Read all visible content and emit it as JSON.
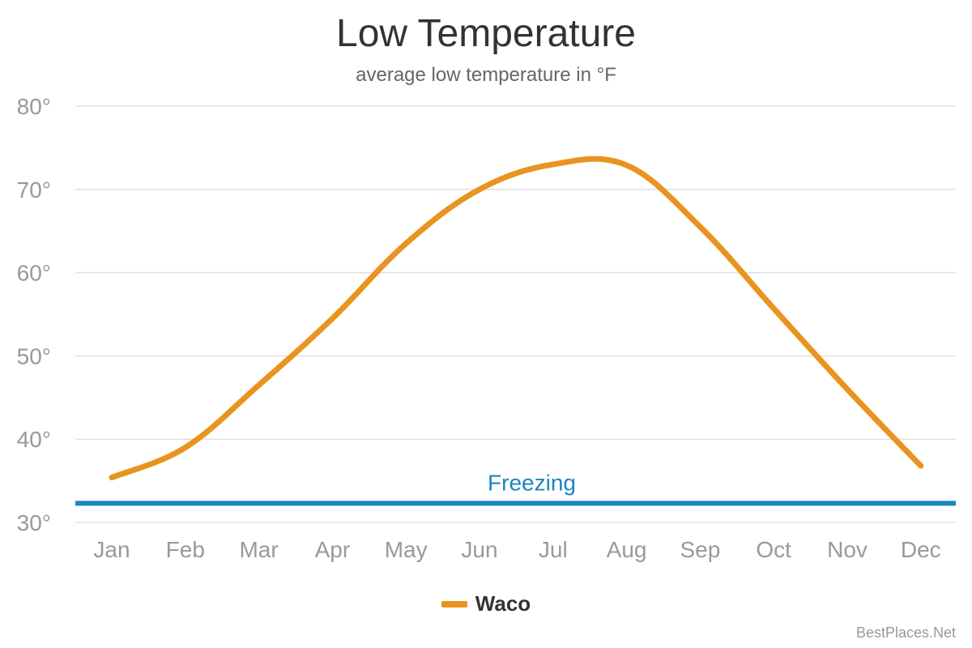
{
  "chart_data": {
    "type": "line",
    "title": "Low Temperature",
    "subtitle": "average low temperature in °F",
    "categories": [
      "Jan",
      "Feb",
      "Mar",
      "Apr",
      "May",
      "Jun",
      "Jul",
      "Aug",
      "Sep",
      "Oct",
      "Nov",
      "Dec"
    ],
    "series": [
      {
        "name": "Waco",
        "color": "#e8941e",
        "values": [
          35.4,
          39.0,
          46.5,
          54.5,
          63.5,
          70.0,
          73.0,
          72.9,
          65.5,
          55.7,
          46.0,
          36.8
        ]
      }
    ],
    "ylim": [
      30,
      80
    ],
    "yticks": [
      30,
      40,
      50,
      60,
      70,
      80
    ],
    "ytick_labels": [
      "30°",
      "40°",
      "50°",
      "60°",
      "70°",
      "80°"
    ],
    "grid": true,
    "legend_position": "bottom",
    "plot_lines": [
      {
        "label": "Freezing",
        "value": 32.3,
        "color": "#1a86c0"
      }
    ]
  },
  "credit": "BestPlaces.Net",
  "colors": {
    "grid": "#e0e0e0",
    "axis_text": "#999999",
    "series": "#e8941e",
    "freezing": "#1a86c0"
  }
}
